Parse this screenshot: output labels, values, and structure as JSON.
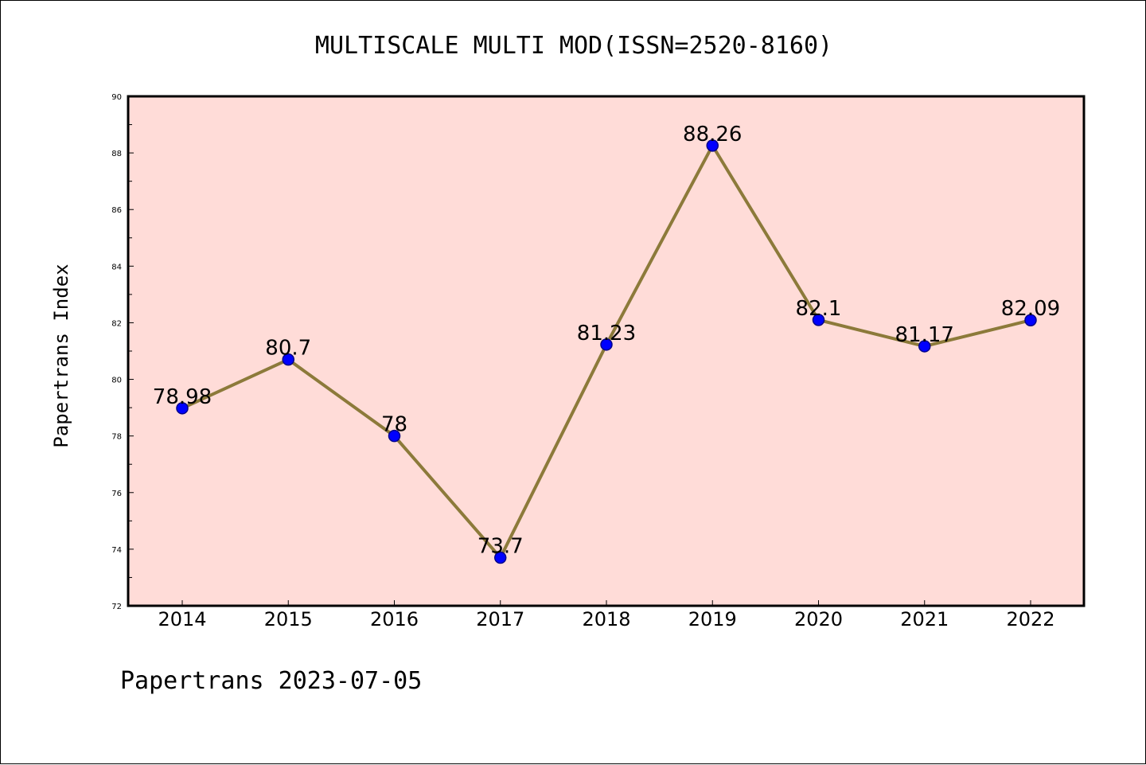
{
  "chart_data": {
    "type": "line",
    "title": "MULTISCALE MULTI MOD(ISSN=2520-8160)",
    "xlabel": "",
    "ylabel": "Papertrans Index",
    "categories": [
      "2014",
      "2015",
      "2016",
      "2017",
      "2018",
      "2019",
      "2020",
      "2021",
      "2022"
    ],
    "series": [
      {
        "values": [
          78.98,
          80.7,
          78,
          73.7,
          81.23,
          88.26,
          82.1,
          81.17,
          82.09
        ],
        "labels": [
          "78.98",
          "80.7",
          "78",
          "73.7",
          "81.23",
          "88.26",
          "82.1",
          "81.17",
          "82.09"
        ]
      }
    ],
    "ylim": [
      72,
      90
    ],
    "yticks": [
      72,
      74,
      76,
      78,
      80,
      82,
      84,
      86,
      88,
      90
    ],
    "grid": false,
    "legend": "none",
    "colors": {
      "plot_background": "#ffdcd8",
      "line": "#8c7a3a",
      "marker": "#0000ff",
      "marker_edge": "#00008b"
    }
  },
  "footer": {
    "text": "Papertrans 2023-07-05"
  }
}
